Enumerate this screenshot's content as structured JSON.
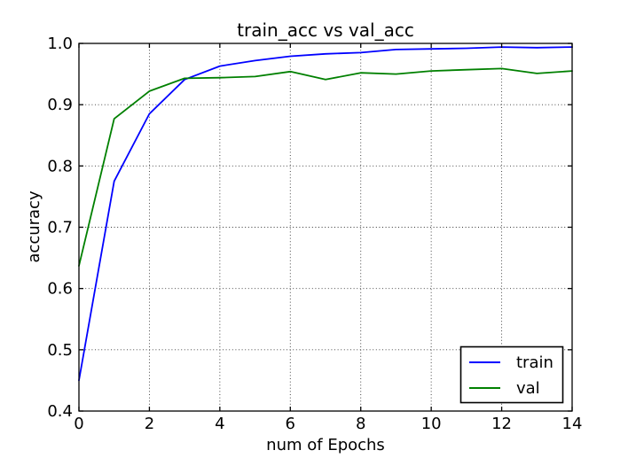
{
  "figure": {
    "background": "#ffffff",
    "text_color": "#000000",
    "frame_color": "#000000",
    "grid_color": "#000000"
  },
  "chart_data": {
    "type": "line",
    "title": "train_acc vs val_acc",
    "xlabel": "num of Epochs",
    "ylabel": "accuracy",
    "xlim": [
      0,
      14
    ],
    "ylim": [
      0.4,
      1.0
    ],
    "xticks": [
      0,
      2,
      4,
      6,
      8,
      10,
      12,
      14
    ],
    "yticks": [
      0.4,
      0.5,
      0.6,
      0.7,
      0.8,
      0.9,
      1.0
    ],
    "xtick_labels": [
      "0",
      "2",
      "4",
      "6",
      "8",
      "10",
      "12",
      "14"
    ],
    "ytick_labels": [
      "0.4",
      "0.5",
      "0.6",
      "0.7",
      "0.8",
      "0.9",
      "1.0"
    ],
    "grid": true,
    "grid_style": "dotted",
    "legend": {
      "position": "lower-right",
      "entries": [
        "train",
        "val"
      ]
    },
    "x": [
      0,
      1,
      2,
      3,
      4,
      5,
      6,
      7,
      8,
      9,
      10,
      11,
      12,
      13,
      14
    ],
    "series": [
      {
        "name": "train",
        "color": "#0000ff",
        "values": [
          0.45,
          0.775,
          0.885,
          0.941,
          0.963,
          0.972,
          0.979,
          0.983,
          0.985,
          0.99,
          0.991,
          0.992,
          0.994,
          0.993,
          0.994
        ]
      },
      {
        "name": "val",
        "color": "#008000",
        "values": [
          0.637,
          0.877,
          0.922,
          0.943,
          0.944,
          0.946,
          0.954,
          0.941,
          0.952,
          0.95,
          0.955,
          0.957,
          0.959,
          0.951,
          0.955
        ]
      }
    ]
  }
}
